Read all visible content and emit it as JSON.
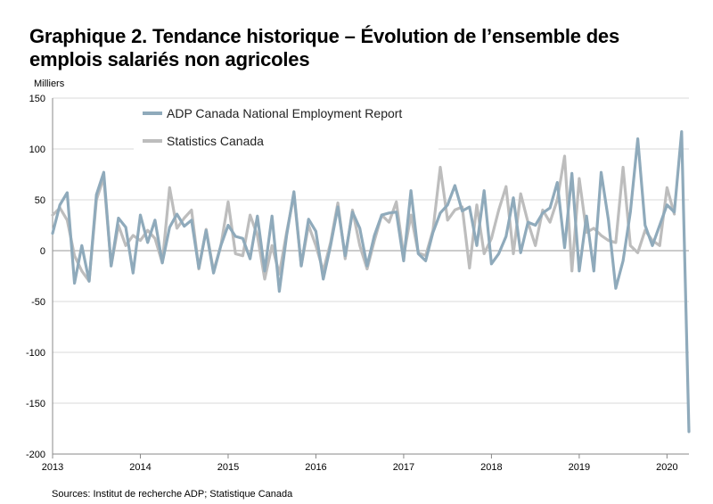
{
  "chart_data": {
    "type": "line",
    "title": "Graphique 2. Tendance historique – Évolution de l’ensemble des emplois salariés non agricoles",
    "ylabel": "Milliers",
    "xlabel": "",
    "source": "Sources: Institut de recherche ADP; Statistique Canada",
    "ylim": [
      -200,
      150
    ],
    "yticks": [
      150,
      100,
      50,
      0,
      -50,
      -100,
      -150,
      -200
    ],
    "xlim": [
      2013,
      2020.25
    ],
    "xticks": [
      2013,
      2014,
      2015,
      2016,
      2017,
      2018,
      2019,
      2020
    ],
    "legend_position": "top-left",
    "series": [
      {
        "name": "ADP Canada National Employment Report",
        "color": "#8faabb",
        "x_start": 2013,
        "step_months": 1,
        "values": [
          17,
          45,
          57,
          -32,
          5,
          -30,
          55,
          77,
          -15,
          32,
          23,
          -22,
          35,
          8,
          30,
          -12,
          23,
          36,
          24,
          30,
          -17,
          20,
          -22,
          5,
          25,
          14,
          12,
          -8,
          34,
          -20,
          34,
          -40,
          15,
          58,
          -15,
          31,
          19,
          -28,
          5,
          43,
          -5,
          38,
          22,
          -15,
          15,
          35,
          37,
          38,
          -10,
          59,
          -3,
          -10,
          18,
          37,
          45,
          64,
          39,
          43,
          5,
          59,
          -13,
          -3,
          14,
          52,
          -2,
          28,
          25,
          37,
          42,
          67,
          3,
          76,
          -20,
          34,
          -20,
          77,
          30,
          -37,
          -10,
          38,
          110,
          25,
          5,
          25,
          45,
          38,
          117,
          -178
        ]
      },
      {
        "name": "Statistics Canada",
        "color": "#bdbdbd",
        "x_start": 2013,
        "step_months": 1,
        "values": [
          35,
          42,
          30,
          -5,
          -20,
          -30,
          50,
          72,
          -15,
          25,
          5,
          15,
          10,
          20,
          12,
          -12,
          62,
          22,
          32,
          40,
          -18,
          21,
          -20,
          5,
          48,
          -3,
          -5,
          35,
          15,
          -28,
          5,
          -23,
          18,
          55,
          -15,
          25,
          5,
          -20,
          8,
          47,
          -8,
          40,
          5,
          -18,
          10,
          35,
          28,
          48,
          -5,
          35,
          -2,
          -5,
          20,
          82,
          30,
          40,
          43,
          -17,
          45,
          -3,
          12,
          40,
          63,
          -3,
          56,
          28,
          5,
          40,
          28,
          50,
          93,
          -20,
          71,
          18,
          22,
          15,
          10,
          8,
          82,
          5,
          -2,
          20,
          10,
          5,
          62,
          36
        ]
      }
    ]
  }
}
